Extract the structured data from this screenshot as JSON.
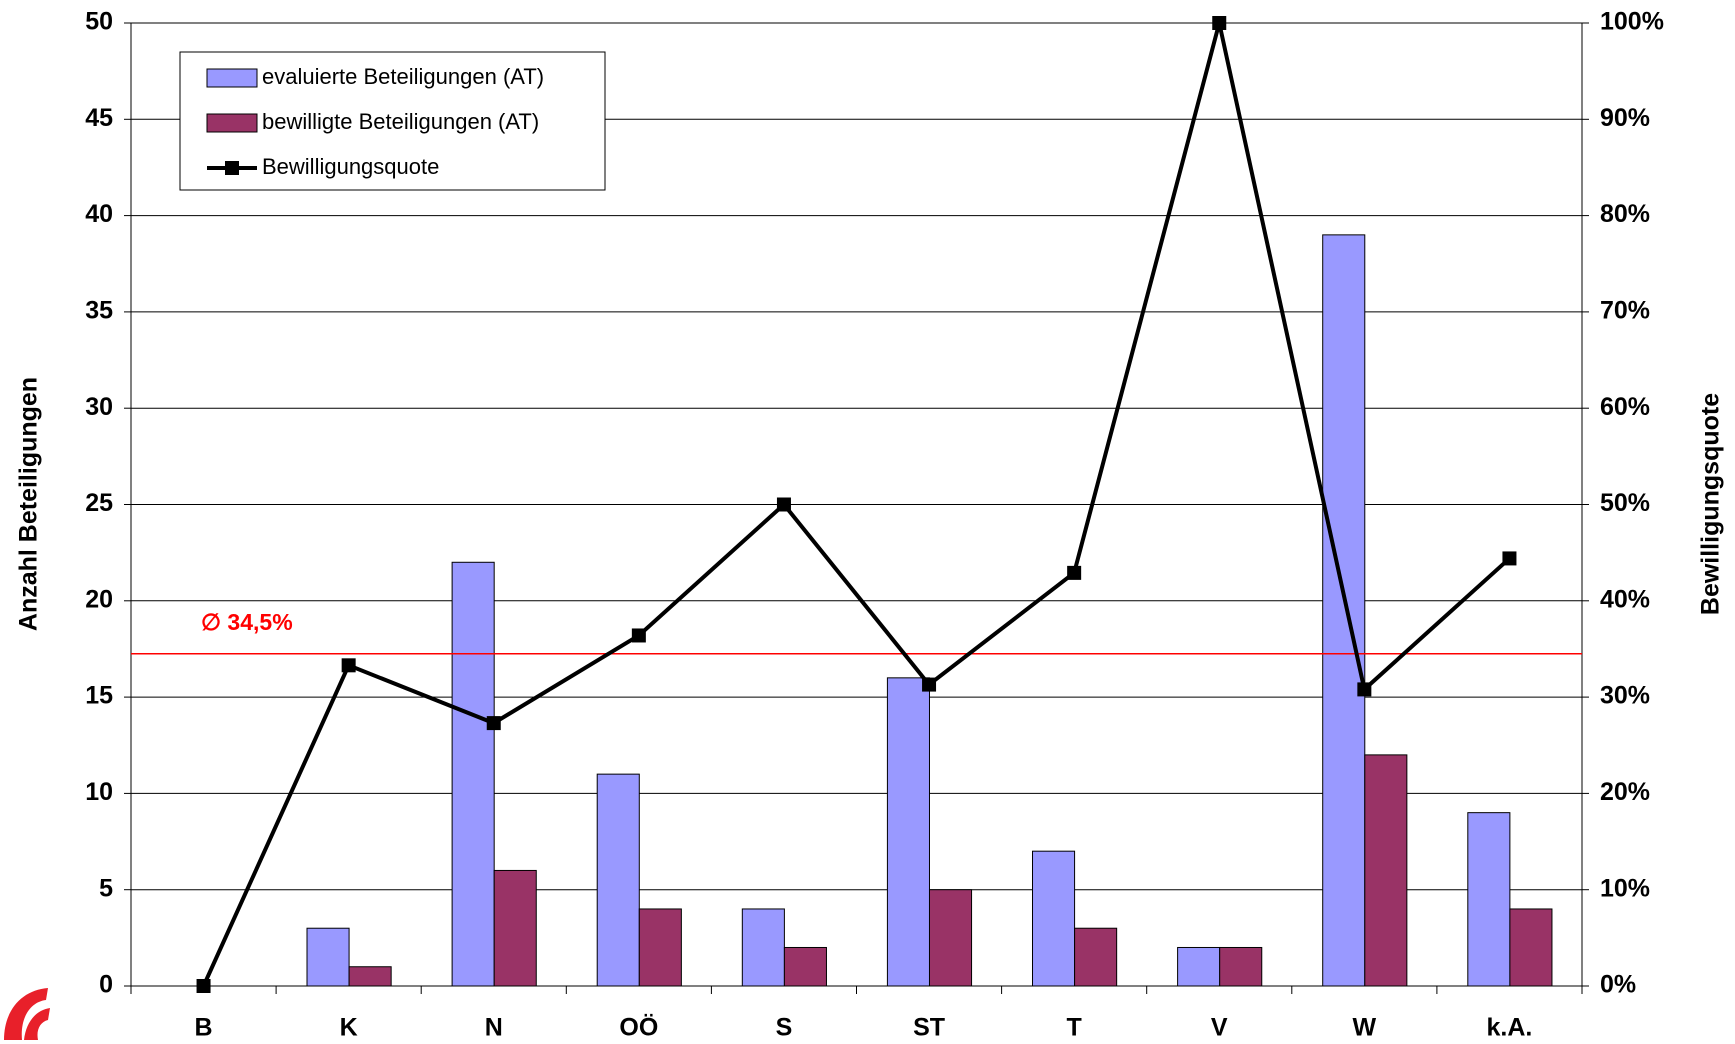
{
  "chart_data": {
    "type": "bar",
    "y_label": "Anzahl Beteiligungen",
    "y2_label": "Bewilligungsquote",
    "categories": [
      "B",
      "K",
      "N",
      "OÖ",
      "S",
      "ST",
      "T",
      "V",
      "W",
      "k.A."
    ],
    "series": [
      {
        "name": "evaluierte Beteiligungen (AT)",
        "type": "bar",
        "color": "#9999ff",
        "values": [
          0,
          3,
          22,
          11,
          4,
          16,
          7,
          2,
          39,
          9
        ]
      },
      {
        "name": "bewilligte Beteiligungen (AT)",
        "type": "bar",
        "color": "#993366",
        "values": [
          0,
          1,
          6,
          4,
          2,
          5,
          3,
          2,
          12,
          4
        ]
      },
      {
        "name": "Bewilligungsquote",
        "type": "line",
        "axis": "y2",
        "color": "#000000",
        "values": [
          0,
          33.3,
          27.3,
          36.4,
          50,
          31.3,
          42.9,
          100,
          30.8,
          44.4
        ]
      }
    ],
    "ylim": [
      0,
      50
    ],
    "yticks": [
      0,
      5,
      10,
      15,
      20,
      25,
      30,
      35,
      40,
      45,
      50
    ],
    "y2lim": [
      0,
      100
    ],
    "y2ticks": [
      {
        "value": 0,
        "label": "0%"
      },
      {
        "value": 10,
        "label": "10%"
      },
      {
        "value": 20,
        "label": "20%"
      },
      {
        "value": 30,
        "label": "30%"
      },
      {
        "value": 40,
        "label": "40%"
      },
      {
        "value": 50,
        "label": "50%"
      },
      {
        "value": 60,
        "label": "60%"
      },
      {
        "value": 70,
        "label": "70%"
      },
      {
        "value": 80,
        "label": "80%"
      },
      {
        "value": 90,
        "label": "90%"
      },
      {
        "value": 100,
        "label": "100%"
      }
    ],
    "grid": true,
    "legend": "top-left",
    "annotations": [
      {
        "text": "∅ 34,5%",
        "value": 34.5,
        "axis": "y2",
        "color": "#ff0000"
      }
    ]
  }
}
